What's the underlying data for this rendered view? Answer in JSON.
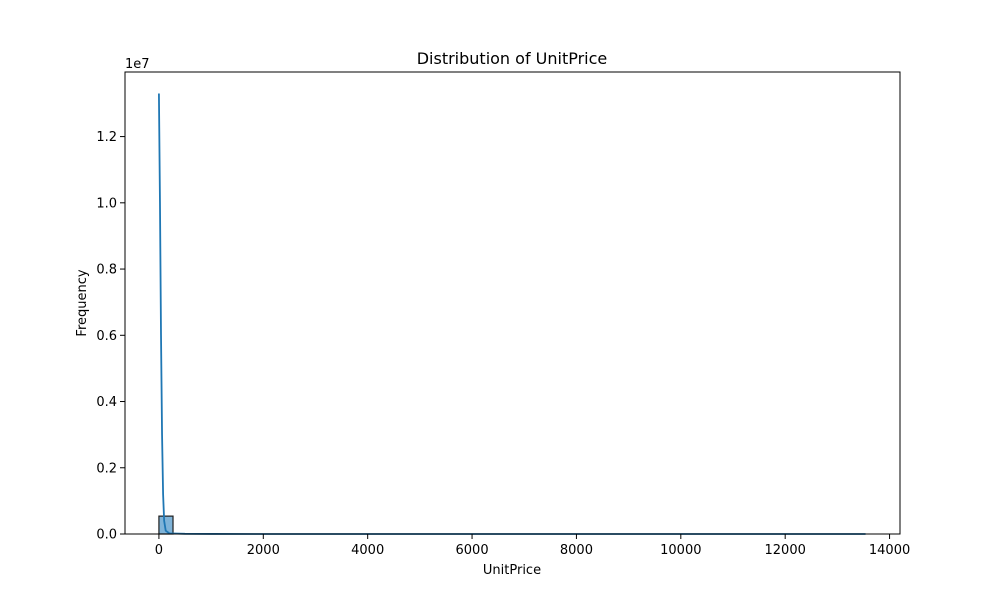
{
  "chart_data": {
    "type": "bar",
    "title": "Distribution of UnitPrice",
    "xlabel": "UnitPrice",
    "ylabel": "Frequency",
    "y_offset_text": "1e7",
    "y_scale_factor": 10000000,
    "xlim": [
      -650,
      14200
    ],
    "ylim": [
      0,
      13950000
    ],
    "x_ticks": [
      0,
      2000,
      4000,
      6000,
      8000,
      10000,
      12000,
      14000
    ],
    "x_tick_labels": [
      "0",
      "2000",
      "4000",
      "6000",
      "8000",
      "10000",
      "12000",
      "14000"
    ],
    "y_ticks": [
      0,
      2000000,
      4000000,
      6000000,
      8000000,
      10000000,
      12000000
    ],
    "y_tick_labels": [
      "0.0",
      "0.2",
      "0.4",
      "0.6",
      "0.8",
      "1.0",
      "1.2"
    ],
    "grid": false,
    "legend": "none",
    "histogram": {
      "bin_width": 270,
      "bins": [
        {
          "start": 0,
          "end": 270,
          "count": 540000
        },
        {
          "start": 270,
          "end": 13540,
          "count": 0
        }
      ]
    },
    "kde": {
      "name": "",
      "x": [
        0,
        20,
        40,
        60,
        80,
        100,
        130,
        200,
        500,
        1000,
        2000,
        4000,
        6000,
        8000,
        10000,
        12000,
        13540
      ],
      "y": [
        13300000,
        10000000,
        6000000,
        3000000,
        1200000,
        400000,
        100000,
        20000,
        5000,
        2000,
        1000,
        500,
        300,
        200,
        100,
        50,
        0
      ]
    },
    "colors": {
      "bar_fill": "#7fb3d8",
      "bar_edge": "#1f1f1f",
      "kde_line": "#1f77b4",
      "axes": "#000000"
    }
  }
}
